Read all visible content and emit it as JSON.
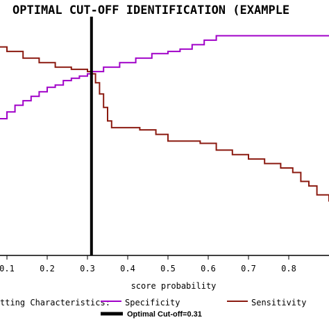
{
  "chart_data": {
    "type": "line",
    "title": "OPTIMAL CUT-OFF IDENTIFICATION (EXAMPLE",
    "xlabel": "score probability",
    "ylabel": "",
    "xlim": [
      0.0,
      0.9
    ],
    "ylim": [
      0.0,
      1.0
    ],
    "x_ticks": [
      0.1,
      0.2,
      0.3,
      0.4,
      0.5,
      0.6,
      0.7,
      0.8
    ],
    "x_tick_labels": [
      "0.1",
      "0.2",
      "0.3",
      "0.4",
      "0.5",
      "0.6",
      "0.7",
      "0.8"
    ],
    "legend_title": "tting Characteristics:",
    "series": [
      {
        "name": "Specificity",
        "color": "#a000c8",
        "points": [
          [
            0.0,
            0.44
          ],
          [
            0.02,
            0.47
          ],
          [
            0.04,
            0.52
          ],
          [
            0.06,
            0.57
          ],
          [
            0.08,
            0.61
          ],
          [
            0.1,
            0.64
          ],
          [
            0.12,
            0.67
          ],
          [
            0.14,
            0.69
          ],
          [
            0.16,
            0.71
          ],
          [
            0.18,
            0.73
          ],
          [
            0.2,
            0.75
          ],
          [
            0.22,
            0.76
          ],
          [
            0.24,
            0.78
          ],
          [
            0.26,
            0.79
          ],
          [
            0.28,
            0.8
          ],
          [
            0.3,
            0.81
          ],
          [
            0.31,
            0.82
          ],
          [
            0.34,
            0.84
          ],
          [
            0.38,
            0.86
          ],
          [
            0.42,
            0.88
          ],
          [
            0.46,
            0.9
          ],
          [
            0.5,
            0.91
          ],
          [
            0.53,
            0.92
          ],
          [
            0.56,
            0.94
          ],
          [
            0.59,
            0.96
          ],
          [
            0.62,
            0.98
          ],
          [
            0.7,
            0.98
          ],
          [
            0.8,
            0.98
          ],
          [
            0.9,
            0.98
          ]
        ]
      },
      {
        "name": "Sensitivity",
        "color": "#8b1a10",
        "points": [
          [
            0.0,
            0.98
          ],
          [
            0.02,
            0.97
          ],
          [
            0.05,
            0.95
          ],
          [
            0.08,
            0.93
          ],
          [
            0.1,
            0.91
          ],
          [
            0.14,
            0.88
          ],
          [
            0.18,
            0.86
          ],
          [
            0.22,
            0.84
          ],
          [
            0.26,
            0.83
          ],
          [
            0.3,
            0.82
          ],
          [
            0.31,
            0.81
          ],
          [
            0.32,
            0.77
          ],
          [
            0.33,
            0.72
          ],
          [
            0.34,
            0.66
          ],
          [
            0.35,
            0.6
          ],
          [
            0.36,
            0.57
          ],
          [
            0.4,
            0.57
          ],
          [
            0.43,
            0.56
          ],
          [
            0.47,
            0.54
          ],
          [
            0.5,
            0.51
          ],
          [
            0.54,
            0.51
          ],
          [
            0.58,
            0.5
          ],
          [
            0.62,
            0.47
          ],
          [
            0.66,
            0.45
          ],
          [
            0.7,
            0.43
          ],
          [
            0.74,
            0.41
          ],
          [
            0.78,
            0.39
          ],
          [
            0.81,
            0.37
          ],
          [
            0.83,
            0.33
          ],
          [
            0.85,
            0.31
          ],
          [
            0.87,
            0.27
          ],
          [
            0.9,
            0.24
          ]
        ]
      }
    ],
    "cutoff": {
      "x": 0.31,
      "label": "Optimal Cut-off=0.31",
      "color": "#000000"
    },
    "grid": false,
    "legend_position": "bottom"
  }
}
